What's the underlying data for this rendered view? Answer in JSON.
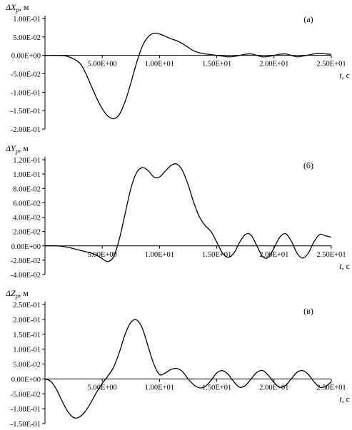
{
  "chart_data": [
    {
      "type": "line",
      "panel_label": "(а)",
      "ylabel_main": "ΔX",
      "ylabel_sub": "p",
      "ylabel_unit": ", м",
      "xlabel_main": "t",
      "xlabel_unit": ", с",
      "xlim": [
        0,
        25
      ],
      "ylim": [
        -0.2,
        0.1
      ],
      "yticks": [
        0.1,
        0.05,
        0.0,
        -0.05,
        -0.1,
        -0.15,
        -0.2
      ],
      "ytick_labels": [
        "1.00E-01",
        "5.00E-02",
        "0.00E+00",
        "-5.00E-02",
        "-1.00E-01",
        "-1.50E-01",
        "-2.00E-01"
      ],
      "xticks": [
        5,
        10,
        15,
        20,
        25
      ],
      "xtick_labels": [
        "5.00E+00",
        "1.00E+01",
        "1.50E+01",
        "2.00E+01",
        "2.50E+01"
      ],
      "series": [
        {
          "x": [
            0,
            1,
            2,
            3,
            3.5,
            4,
            4.5,
            5,
            5.5,
            6,
            6.5,
            7,
            7.5,
            8,
            8.5,
            9,
            9.5,
            10,
            10.5,
            11,
            11.5,
            12,
            12.5,
            13,
            13.5,
            14,
            14.5,
            15,
            15.5,
            16,
            16.5,
            17,
            17.5,
            18,
            18.5,
            19,
            19.5,
            20,
            20.5,
            21,
            21.5,
            22,
            22.5,
            23,
            23.5,
            24,
            24.5,
            25
          ],
          "y": [
            0,
            0,
            -0.003,
            -0.02,
            -0.045,
            -0.08,
            -0.115,
            -0.145,
            -0.165,
            -0.172,
            -0.16,
            -0.125,
            -0.075,
            -0.02,
            0.025,
            0.05,
            0.06,
            0.058,
            0.052,
            0.045,
            0.04,
            0.032,
            0.022,
            0.012,
            0.007,
            0.004,
            0.002,
            0.0,
            -0.002,
            -0.004,
            -0.003,
            0.0,
            0.003,
            0.004,
            0.0,
            -0.004,
            -0.003,
            0.0,
            0.003,
            0.004,
            0.0,
            -0.004,
            -0.002,
            0.001,
            0.004,
            0.005,
            0.004,
            0.003
          ]
        }
      ]
    },
    {
      "type": "line",
      "panel_label": "(б)",
      "ylabel_main": "ΔY",
      "ylabel_sub": "p",
      "ylabel_unit": ", м",
      "xlabel_main": "t",
      "xlabel_unit": ", с",
      "xlim": [
        0,
        25
      ],
      "ylim": [
        -0.04,
        0.12
      ],
      "yticks": [
        0.12,
        0.1,
        0.08,
        0.06,
        0.04,
        0.02,
        0.0,
        -0.02,
        -0.04
      ],
      "ytick_labels": [
        "1.20E-01",
        "1.00E-01",
        "8.00E-02",
        "6.00E-02",
        "4.00E-02",
        "2.00E-02",
        "0.00E+00",
        "-2.00E-02",
        "-4.00E-02"
      ],
      "xticks": [
        5,
        10,
        15,
        20,
        25
      ],
      "xtick_labels": [
        "5.00E+00",
        "1.00E+01",
        "1.50E+01",
        "2.00E+01",
        "2.50E+01"
      ],
      "series": [
        {
          "x": [
            0,
            1,
            2,
            3,
            4,
            4.5,
            5,
            5.5,
            6,
            6.5,
            7,
            7.5,
            8,
            8.5,
            9,
            9.5,
            10,
            10.5,
            11,
            11.5,
            12,
            12.5,
            13,
            13.5,
            14,
            14.5,
            15,
            15.5,
            16,
            16.5,
            17,
            17.5,
            18,
            18.5,
            19,
            19.5,
            20,
            20.5,
            21,
            21.5,
            22,
            22.5,
            23,
            23.5,
            24,
            24.5,
            25
          ],
          "y": [
            0,
            0,
            -0.002,
            -0.006,
            -0.01,
            -0.013,
            -0.018,
            -0.022,
            -0.015,
            0.01,
            0.045,
            0.08,
            0.102,
            0.109,
            0.105,
            0.096,
            0.096,
            0.104,
            0.112,
            0.114,
            0.105,
            0.085,
            0.06,
            0.04,
            0.028,
            0.02,
            0.005,
            -0.01,
            -0.016,
            -0.01,
            0.005,
            0.016,
            0.015,
            0.0,
            -0.015,
            -0.016,
            -0.003,
            0.012,
            0.017,
            0.007,
            -0.01,
            -0.017,
            -0.01,
            0.006,
            0.016,
            0.014,
            0.012
          ]
        }
      ]
    },
    {
      "type": "line",
      "panel_label": "(в)",
      "ylabel_main": "ΔZ",
      "ylabel_sub": "p",
      "ylabel_unit": ", м",
      "xlabel_main": "t",
      "xlabel_unit": ", с",
      "xlim": [
        0,
        25
      ],
      "ylim": [
        -0.15,
        0.25
      ],
      "yticks": [
        0.25,
        0.2,
        0.15,
        0.1,
        0.05,
        0.0,
        -0.05,
        -0.1,
        -0.15
      ],
      "ytick_labels": [
        "2.50E-01",
        "2.00E-01",
        "1.50E-01",
        "1.00E-01",
        "5.00E-02",
        "0.00E+00",
        "-5.00E-02",
        "-1.00E-01",
        "-1.50E-01"
      ],
      "xticks": [
        5,
        10,
        15,
        20,
        25
      ],
      "xtick_labels": [
        "5.00E+00",
        "1.00E+01",
        "1.50E+01",
        "2.00E+01",
        "2.50E+01"
      ],
      "series": [
        {
          "x": [
            0,
            0.5,
            1,
            1.5,
            2,
            2.5,
            3,
            3.5,
            4,
            4.5,
            5,
            5.5,
            6,
            6.5,
            7,
            7.5,
            8,
            8.5,
            9,
            9.5,
            10,
            10.5,
            11,
            11.5,
            12,
            12.5,
            13,
            13.5,
            14,
            14.5,
            15,
            15.5,
            16,
            16.5,
            17,
            17.5,
            18,
            18.5,
            19,
            19.5,
            20,
            20.5,
            21,
            21.5,
            22,
            22.5,
            23,
            23.5,
            24,
            24.5,
            25
          ],
          "y": [
            0,
            -0.008,
            -0.035,
            -0.075,
            -0.11,
            -0.13,
            -0.128,
            -0.11,
            -0.08,
            -0.045,
            -0.015,
            0.01,
            0.04,
            0.09,
            0.15,
            0.19,
            0.198,
            0.17,
            0.11,
            0.05,
            0.015,
            0.02,
            0.032,
            0.035,
            0.025,
            0.0,
            -0.02,
            -0.03,
            -0.025,
            -0.005,
            0.02,
            0.028,
            0.015,
            -0.01,
            -0.028,
            -0.022,
            0.0,
            0.022,
            0.028,
            0.012,
            -0.012,
            -0.028,
            -0.022,
            0.0,
            0.022,
            0.028,
            0.015,
            -0.01,
            -0.028,
            -0.025,
            -0.01
          ]
        }
      ]
    }
  ]
}
